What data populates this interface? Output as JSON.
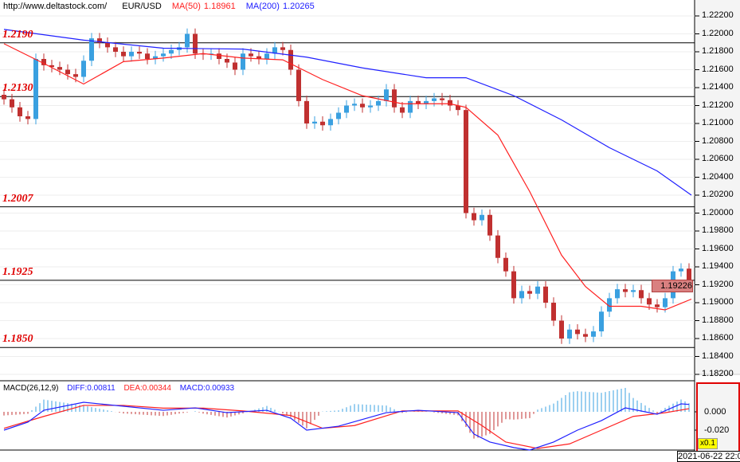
{
  "header": {
    "url": "http://www.deltastock.com/",
    "symbol": "EUR/USD",
    "ma50_label": "MA(50)",
    "ma50_value": "1.18961",
    "ma200_label": "MA(200)",
    "ma200_value": "1.20265"
  },
  "macd_header": {
    "label": "MACD(26,12,9)",
    "diff": "DIFF:0.00811",
    "dea": "DEA:0.00344",
    "macd": "MACD:0.00933"
  },
  "current_price": "1.19226",
  "time_label": "2021-06-22 22:0",
  "macd_scale": "x0.1",
  "colors": {
    "up": "#3aa0e0",
    "down": "#c03030",
    "ma50": "#ff2020",
    "ma200": "#2020ff",
    "level": "#e00000"
  },
  "chart_data": [
    {
      "type": "candlestick",
      "ylim": [
        1.181,
        1.2232
      ],
      "y_ticks": [
        "1.22200",
        "1.22000",
        "1.21800",
        "1.21600",
        "1.21400",
        "1.21200",
        "1.21000",
        "1.20800",
        "1.20600",
        "1.20400",
        "1.20200",
        "1.20000",
        "1.19800",
        "1.19600",
        "1.19400",
        "1.19200",
        "1.19000",
        "1.18800",
        "1.18600",
        "1.18400",
        "1.18200"
      ],
      "levels": [
        "1.2190",
        "1.2130",
        "1.2007",
        "1.1925",
        "1.1850"
      ],
      "close": [
        1.2127,
        1.2118,
        1.2108,
        1.2105,
        1.2172,
        1.2165,
        1.2163,
        1.216,
        1.2155,
        1.2152,
        1.217,
        1.2195,
        1.219,
        1.2185,
        1.218,
        1.2175,
        1.218,
        1.2178,
        1.2172,
        1.2175,
        1.2178,
        1.2182,
        1.2185,
        1.22,
        1.2178,
        1.2177,
        1.2178,
        1.2172,
        1.2168,
        1.216,
        1.2178,
        1.2175,
        1.2172,
        1.2178,
        1.2185,
        1.2182,
        1.216,
        1.2125,
        1.21,
        1.2102,
        1.2098,
        1.2105,
        1.2112,
        1.212,
        1.2122,
        1.2118,
        1.212,
        1.2125,
        1.2138,
        1.2118,
        1.2112,
        1.2125,
        1.2122,
        1.2125,
        1.2128,
        1.2126,
        1.212,
        1.2115,
        1.2,
        1.1992,
        1.1998,
        1.1975,
        1.195,
        1.1935,
        1.1905,
        1.1913,
        1.191,
        1.1918,
        1.19,
        1.188,
        1.186,
        1.187,
        1.1865,
        1.1862,
        1.1868,
        1.189,
        1.1905,
        1.1915,
        1.1912,
        1.1914,
        1.1905,
        1.1898,
        1.1895,
        1.1905,
        1.1935,
        1.1938,
        1.19226
      ],
      "ma50": [
        [
          0,
          1.2189
        ],
        [
          5,
          1.2167
        ],
        [
          10,
          1.2144
        ],
        [
          15,
          1.2169
        ],
        [
          20,
          1.2173
        ],
        [
          25,
          1.2178
        ],
        [
          30,
          1.2173
        ],
        [
          35,
          1.2171
        ],
        [
          40,
          1.2149
        ],
        [
          45,
          1.2131
        ],
        [
          50,
          1.2122
        ],
        [
          56,
          1.2122
        ],
        [
          58,
          1.2118
        ],
        [
          62,
          1.2087
        ],
        [
          66,
          1.2024
        ],
        [
          70,
          1.1953
        ],
        [
          73,
          1.1918
        ],
        [
          76,
          1.1896
        ],
        [
          80,
          1.1896
        ],
        [
          83,
          1.1892
        ],
        [
          86.3,
          1.1904
        ]
      ],
      "ma200": [
        [
          0,
          1.2205
        ],
        [
          10,
          1.2193
        ],
        [
          20,
          1.2184
        ],
        [
          30,
          1.2183
        ],
        [
          38,
          1.2174
        ],
        [
          45,
          1.2162
        ],
        [
          53,
          1.2151
        ],
        [
          58,
          1.2151
        ],
        [
          64,
          1.2131
        ],
        [
          70,
          1.2104
        ],
        [
          76,
          1.2073
        ],
        [
          82,
          1.2047
        ],
        [
          86.3,
          1.202
        ]
      ]
    },
    {
      "type": "macd",
      "ylim": [
        -0.042,
        0.034
      ],
      "y_ticks": [
        "0.000",
        "-0.020"
      ],
      "diff": [
        [
          0,
          -0.02
        ],
        [
          3,
          -0.0113
        ],
        [
          5,
          0.0017
        ],
        [
          10,
          0.0104
        ],
        [
          15,
          0.0061
        ],
        [
          20,
          0.0017
        ],
        [
          24,
          0.0043
        ],
        [
          28,
          -0.0009
        ],
        [
          33,
          0.0017
        ],
        [
          36,
          -0.007
        ],
        [
          38,
          -0.02
        ],
        [
          42,
          -0.0157
        ],
        [
          48,
          -0.0009
        ],
        [
          52,
          0.0017
        ],
        [
          57,
          -0.0009
        ],
        [
          59,
          -0.0243
        ],
        [
          61,
          -0.033
        ],
        [
          64,
          -0.039
        ],
        [
          66,
          -0.0417
        ],
        [
          69,
          -0.033
        ],
        [
          72,
          -0.02
        ],
        [
          75,
          -0.0096
        ],
        [
          78,
          0.0043
        ],
        [
          82,
          -0.0026
        ],
        [
          85,
          0.0087
        ],
        [
          86,
          0.00811
        ]
      ],
      "dea": [
        [
          0,
          -0.018
        ],
        [
          5,
          -0.005
        ],
        [
          10,
          0.007
        ],
        [
          15,
          0.007
        ],
        [
          20,
          0.004
        ],
        [
          25,
          0.004
        ],
        [
          30,
          0.001
        ],
        [
          36,
          -0.004
        ],
        [
          40,
          -0.018
        ],
        [
          44,
          -0.015
        ],
        [
          50,
          0.001
        ],
        [
          57,
          0.001
        ],
        [
          60,
          -0.015
        ],
        [
          63,
          -0.033
        ],
        [
          67,
          -0.04
        ],
        [
          71,
          -0.035
        ],
        [
          75,
          -0.02
        ],
        [
          79,
          -0.005
        ],
        [
          83,
          -0.001
        ],
        [
          86,
          0.00344
        ]
      ]
    }
  ]
}
